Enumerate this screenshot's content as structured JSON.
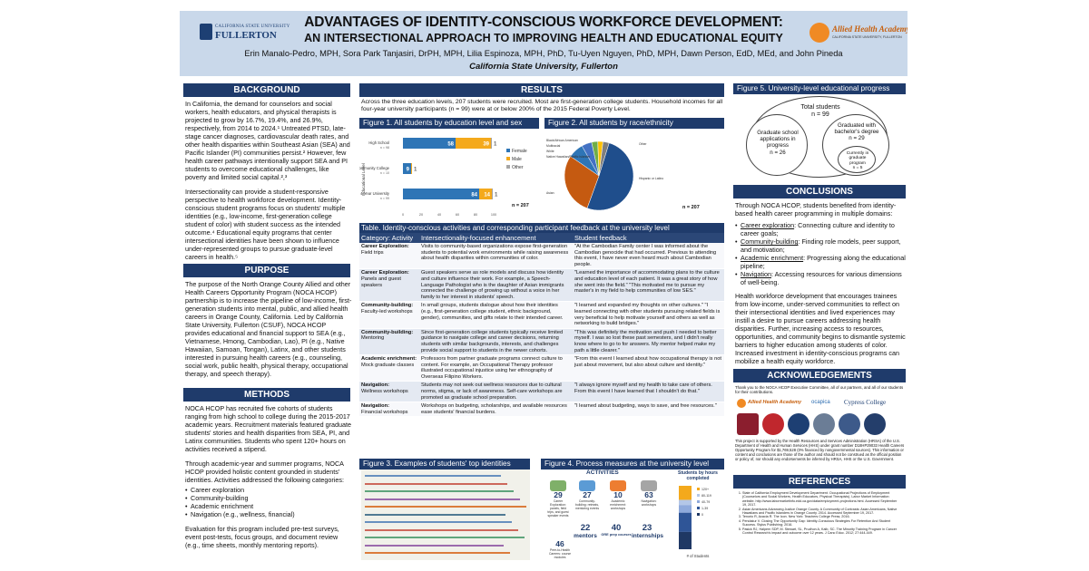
{
  "header": {
    "logo_left_line1": "CALIFORNIA STATE UNIVERSITY",
    "logo_left_line2": "FULLERTON",
    "title": "ADVANTAGES OF IDENTITY-CONSCIOUS WORKFORCE DEVELOPMENT:",
    "subtitle": "AN INTERSECTIONAL APPROACH TO IMPROVING HEALTH AND EDUCATIONAL EQUITY",
    "authors": "Erin Manalo-Pedro, MPH, Sora Park Tanjasiri, DrPH, MPH, Lilia Espinoza, MPH, PhD, Tu-Uyen Nguyen, PhD, MPH, Dawn Person, EdD, MEd, and John Pineda",
    "affiliation": "California State University, Fullerton",
    "logo_right_name": "Allied Health Academy",
    "logo_right_sub": "CALIFORNIA STATE UNIVERSITY, FULLERTON"
  },
  "background": {
    "heading": "BACKGROUND",
    "p1": "In California, the demand for counselors and social workers, health educators, and physical therapists is projected to grow by 16.7%, 19.4%, and 26.9%, respectively, from 2014 to 2024.¹ Untreated PTSD, late-stage cancer diagnoses, cardiovascular death rates, and other health disparities within Southeast Asian (SEA) and Pacific Islander (PI) communities persist.² However, few health career pathways intentionally support SEA and PI students to overcome educational challenges, like poverty and limited social capital.²,³",
    "p2": "Intersectionality can provide a student-responsive perspective to health workforce development. Identity-conscious student programs focus on students' multiple identities (e.g., low-income, first-generation college student of color) with student success as the intended outcome.⁴ Educational equity programs that center intersectional identities have been shown to influence under-represented groups to pursue graduate-level careers in health.⁵"
  },
  "purpose": {
    "heading": "PURPOSE",
    "p1": "The purpose of the North Orange County Allied and other Health Careers Opportunity Program (NOCA HCOP) partnership is to increase the pipeline of low-income, first-generation students into mental, public, and allied health careers in Orange County, California. Led by California State University, Fullerton (CSUF), NOCA HCOP provides educational and financial support to SEA (e.g., Vietnamese, Hmong, Cambodian, Lao), PI (e.g., Native Hawaiian, Samoan, Tongan), Latinx, and other students interested in pursuing health careers (e.g., counseling, social work, public health, physical therapy, occupational therapy, and speech therapy)."
  },
  "methods": {
    "heading": "METHODS",
    "p1": "NOCA HCOP has recruited five cohorts of students ranging from high school to college during the 2015-2017 academic years. Recruitment materials featured graduate students' stories and health disparities from SEA, PI, and Latinx communities. Students who spent 120+ hours on activities received a stipend.",
    "p2": "Through academic-year and summer programs, NOCA HCOP provided holistic content grounded in students' identities. Activities addressed the following categories:",
    "bullets": [
      "Career exploration",
      "Community-building",
      "Academic enrichment",
      "Navigation (e.g., wellness, financial)"
    ],
    "p3": "Evaluation for this program included pre-test surveys, event post-tests, focus groups, and document review (e.g., time sheets, monthly mentoring reports)."
  },
  "results": {
    "heading": "RESULTS",
    "intro": "Across the three education levels, 207 students were recruited. Most are first-generation college students. Household incomes for all four-year university participants (n = 99) were at or below 200% of the 2015 Federal Poverty Level."
  },
  "figure1": {
    "heading": "Figure 1. All students by education level and sex",
    "n_label": "n = 207",
    "chart_data": {
      "type": "bar",
      "orientation": "horizontal",
      "stacked": true,
      "categories": [
        "High School",
        "Community College",
        "4-Year University"
      ],
      "category_counts": [
        "n = 98",
        "n = 10",
        "n = 99"
      ],
      "series": [
        {
          "name": "Female",
          "values": [
            58,
            9,
            84
          ],
          "color": "#2e75b6"
        },
        {
          "name": "Male",
          "values": [
            39,
            1,
            14
          ],
          "color": "#f4a91c"
        },
        {
          "name": "Other",
          "values": [
            1,
            0,
            1
          ],
          "color": "#a5a5a5"
        }
      ],
      "ylabel": "Educational Level",
      "xlim": [
        0,
        100
      ],
      "xticks": [
        "0",
        "20",
        "40",
        "60",
        "80",
        "100"
      ],
      "legend": "right"
    }
  },
  "figure2": {
    "heading": "Figure 2. All students by race/ethnicity",
    "n_label": "n = 207",
    "chart_data": {
      "type": "pie",
      "slices": [
        {
          "label": "Hispanic or Latino",
          "value": 50.8,
          "color": "#1f4e8c"
        },
        {
          "label": "Asian",
          "value": 29.0,
          "color": "#c55a11"
        },
        {
          "label": "Native Hawaiian/Pacific Islander",
          "value": 7.2,
          "color": "#2e75b6"
        },
        {
          "label": "White",
          "value": 4.8,
          "color": "#4472c4"
        },
        {
          "label": "Black/African American",
          "value": 2.9,
          "color": "#70ad47"
        },
        {
          "label": "Multiracial",
          "value": 2.4,
          "color": "#ffc000"
        },
        {
          "label": "Other",
          "value": 2.9,
          "color": "#7f7f7f"
        }
      ]
    }
  },
  "table": {
    "heading": "Table. Identity-conscious activities and corresponding participant feedback at the university level",
    "columns": [
      "Category: Activity",
      "Intersectionality-focused enhancement",
      "Student feedback"
    ],
    "rows": [
      {
        "cat": "Career Exploration:",
        "act": "Field trips",
        "enh": "Visits to community-based organizations expose first-generation students to potential work environments while raising awareness about health disparities within communities of color.",
        "fb": "\"At the Cambodian Family center I was informed about the Cambodian genocide that had occurred. Previous to attending this event, I have never even heard much about Cambodian people."
      },
      {
        "cat": "Career Exploration:",
        "act": "Panels and guest speakers",
        "enh": "Guest speakers serve as role models and discuss how identity and culture influence their work. For example, a Speech-Language Pathologist who is the daughter of Asian immigrants connected the challenge of growing up without a voice in her family to her interest in students' speech.",
        "fb": "\"Learned the importance of accommodating plans to the culture and education level of each patient. It was a great story of how she went into the field.\" \"This motivated me to pursue my master's in my field to help communities of low SES.\""
      },
      {
        "cat": "Community-building:",
        "act": "Faculty-led workshops",
        "enh": "In small groups, students dialogue about how their identities (e.g., first-generation college student, ethnic background, gender), communities, and gifts relate to their intended career.",
        "fb": "\"I learned and expanded my thoughts on other cultures.\" \"I learned connecting with other students pursuing related fields is very beneficial to help motivate yourself and others as well as networking to build bridges.\""
      },
      {
        "cat": "Community-building:",
        "act": "Mentoring",
        "enh": "Since first-generation college students typically receive limited guidance to navigate college and career decisions, returning students with similar backgrounds, interests, and challenges provide social support to students in the newer cohorts.",
        "fb": "\"This was definitely the motivation and push I needed to better myself. I was so lost these past semesters, and I didn't really know where to go to for answers. My mentor helped make my path a little clearer.\""
      },
      {
        "cat": "Academic enrichment:",
        "act": "Mock graduate classes",
        "enh": "Professors from partner graduate programs connect culture to content. For example, an Occupational Therapy professor illustrated occupational injustice using her ethnography of Overseas Filipino Workers.",
        "fb": "\"From this event I learned about how occupational therapy is not just about movement, but also about culture and identity.\""
      },
      {
        "cat": "Navigation:",
        "act": "Wellness workshops",
        "enh": "Students may not seek out wellness resources due to cultural norms, stigma, or lack of awareness. Self-care workshops are promoted as graduate school preparation.",
        "fb": "\"I always ignore myself and my health to take care of others. From this event I have learned that I shouldn't do that.\""
      },
      {
        "cat": "Navigation:",
        "act": "Financial workshops",
        "enh": "Workshops on budgeting, scholarships, and available resources ease students' financial burdens.",
        "fb": "\"I learned about budgeting, ways to save, and free resources.\""
      }
    ]
  },
  "figure3": {
    "heading": "Figure 3. Examples of students' top identities"
  },
  "figure4": {
    "heading": "Figure 4. Process measures at the university level",
    "activities_title": "ACTIVITIES",
    "items": [
      {
        "num": "29",
        "label": "Career Exploration: panels, field trips, and guest speaker events"
      },
      {
        "num": "27",
        "label": "Community-building: retreats, mentoring events"
      },
      {
        "num": "10",
        "label": "Academic enrichment: workshops"
      },
      {
        "num": "63",
        "label": "Navigation: workshops"
      },
      {
        "num": "46",
        "label": "Peer-to-Health Careers: course modules"
      }
    ],
    "big": [
      {
        "num": "22",
        "label": "mentors"
      },
      {
        "num": "40",
        "label": "GRE prep courses"
      },
      {
        "num": "23",
        "label": "internships"
      }
    ],
    "side_title": "Students by hours completed",
    "side_axis": "# of Students",
    "side_chart": {
      "type": "bar",
      "stacked": true,
      "categories": [
        "University"
      ],
      "series": [
        {
          "name": "120+",
          "values": [
            22
          ],
          "color": "#f4a91c"
        },
        {
          "name": "80-119",
          "values": [
            8
          ],
          "color": "#b4c7e7"
        },
        {
          "name": "40-79",
          "values": [
            12
          ],
          "color": "#8faadc"
        },
        {
          "name": "1-39",
          "values": [
            30
          ],
          "color": "#2f5597"
        },
        {
          "name": "0",
          "values": [
            27
          ],
          "color": "#1f3864"
        }
      ]
    }
  },
  "figure5": {
    "heading": "Figure 5. University-level educational progress",
    "total": "Total students\nn = 99",
    "applications": "Graduate school applications in progress\nn = 26",
    "graduated": "Graduated with bachelor's degree\nn = 29",
    "current": "Currently in graduate program\nn = 5"
  },
  "conclusions": {
    "heading": "CONCLUSIONS",
    "intro": "Through NOCA HCOP, students benefited from identity-based health career programming in multiple domains:",
    "bullets": [
      {
        "u": "Career exploration",
        "t": ": Connecting culture and identity to career goals;"
      },
      {
        "u": "Community-building",
        "t": ": Finding role models, peer support, and motivation;"
      },
      {
        "u": "Academic enrichment",
        "t": ": Progressing along the educational pipeline;"
      },
      {
        "u": "Navigation",
        "t": ": Accessing resources for various dimensions of well-being."
      }
    ],
    "p2": "Health workforce development that encourages trainees from low-income, under-served communities to reflect on their intersectional identities and lived experiences may instill a desire to pursue careers addressing health disparities. Further, increasing access to resources, opportunities, and community begins to dismantle systemic barriers to higher education among students of color. Increased investment in identity-conscious programs can mobilize a health equity workforce."
  },
  "acknowledgements": {
    "heading": "ACKNOWLEDGEMENTS",
    "p1": "Thank you to the NOCA HCOP Executive Committee, all of our partners, and all of our students for their contributions.",
    "p2": "This project is supported by the Health Resources and Services Administration (HRSA) of the U.S. Department of Health and Human Services (HHS) under grant number D18HP29033 Health Careers Opportunity Program for $1,769,528 (0% financed by nongovernmental sources). This information or content and conclusions are those of the author and should not be construed as the official position or policy of, nor should any endorsements be inferred by HRSA, HHS or the U.S. Government.",
    "logo_cypress": "Cypress College",
    "logo_ocapica": "ocapica",
    "logo_aha": "Allied Health Academy"
  },
  "references": {
    "heading": "REFERENCES",
    "items": [
      "State of California Employment Development Department. Occupational Projections of Employment (Counselors and Social Workers, Health Educators, Physical Therapists). Labor Market Information website. http://www.labormarketinfo.edd.ca.gov/data/employment-projections.html. Accessed September 19, 2017.",
      "Asian Americans Advancing Justice Orange County. A Community of Contrasts: Asian Americans, Native Hawaiians and Pacific Islanders in Orange County. 2014. Accessed September 19, 2017.",
      "Tenorio R, Acacia R. The Icon. New York: Teachers College Press; 2016.",
      "Pendakur V. Closing The Opportunity Gap: Identity-Conscious Strategies For Retention And Student Success. Stylus Publishing; 2016.",
      "Pasick RJ, Halpern SDP, M. Stewart, SL, Prudhon A, Kalb, SC. The Minority Training Program in Cancer Control Research's impact and outcome over 12 years. J Canc Educ. 2012; 27:444-449."
    ]
  }
}
